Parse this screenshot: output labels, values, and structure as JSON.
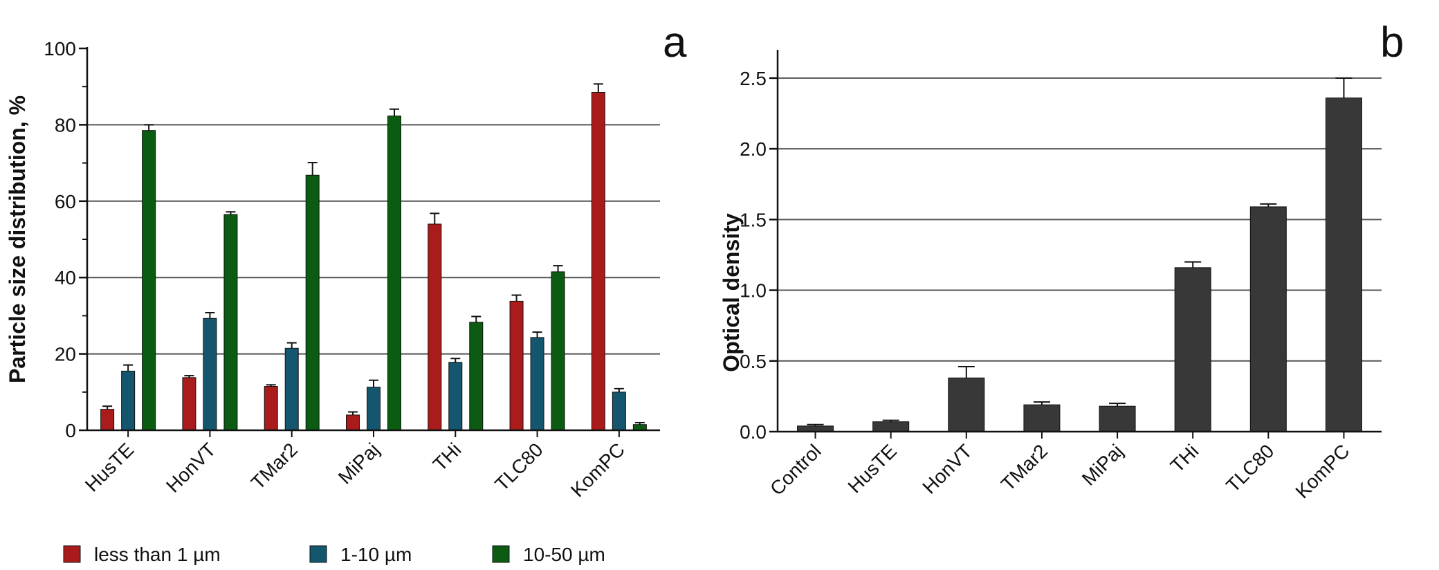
{
  "chart_data": [
    {
      "panel": "a",
      "type": "bar",
      "title": "",
      "xlabel": "",
      "ylabel": "Particle size distribution, %",
      "ylim": [
        0,
        100
      ],
      "yticks": [
        "0",
        "20",
        "40",
        "60",
        "80",
        "100"
      ],
      "grid": true,
      "categories": [
        "HusTE",
        "HonVT",
        "TMar2",
        "MiPaj",
        "THi",
        "TLC80",
        "KomPC"
      ],
      "series": [
        {
          "name": "less than 1 µm",
          "color": "#aa1b1b",
          "values": [
            5.5,
            13.8,
            11.5,
            4.0,
            54.0,
            33.8,
            88.5
          ],
          "errors": [
            0.8,
            0.5,
            0.4,
            0.8,
            2.8,
            1.6,
            2.2
          ]
        },
        {
          "name": "1-10 µm",
          "color": "#14566e",
          "values": [
            15.5,
            29.3,
            21.5,
            11.3,
            17.8,
            24.3,
            10.0
          ],
          "errors": [
            1.6,
            1.5,
            1.4,
            1.8,
            1.0,
            1.4,
            0.9
          ]
        },
        {
          "name": "10-50 µm",
          "color": "#0b5c12",
          "values": [
            78.5,
            56.5,
            66.8,
            82.3,
            28.3,
            41.5,
            1.5
          ],
          "errors": [
            1.5,
            0.7,
            3.3,
            1.8,
            1.5,
            1.6,
            0.5
          ]
        }
      ],
      "legend_position": "bottom"
    },
    {
      "panel": "b",
      "type": "bar",
      "title": "",
      "xlabel": "",
      "ylabel": "Optical density",
      "ylim": [
        0,
        2.7
      ],
      "yticks": [
        "0.0",
        "0.5",
        "1.0",
        "1.5",
        "2.0",
        "2.5"
      ],
      "grid": true,
      "color": "#383838",
      "categories": [
        "Control",
        "HusTE",
        "HonVT",
        "TMar2",
        "MiPaj",
        "THi",
        "TLC80",
        "KomPC"
      ],
      "values": [
        0.04,
        0.07,
        0.38,
        0.19,
        0.18,
        1.16,
        1.59,
        2.36
      ],
      "errors": [
        0.01,
        0.01,
        0.08,
        0.02,
        0.02,
        0.04,
        0.02,
        0.14
      ]
    }
  ]
}
